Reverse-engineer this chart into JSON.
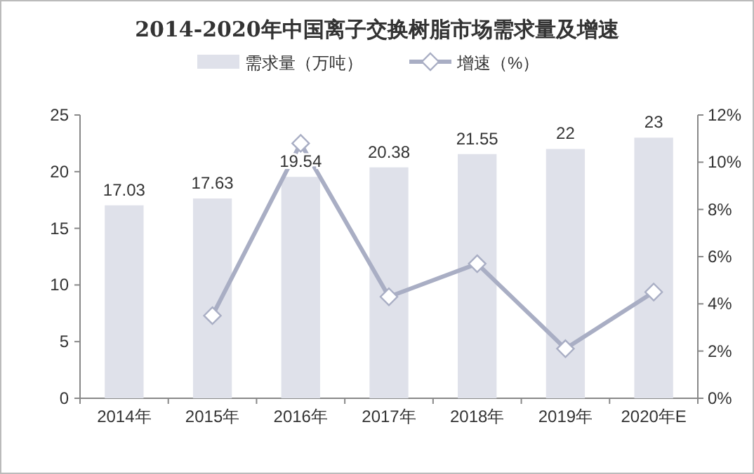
{
  "chart_data": {
    "type": "bar",
    "title": "2014-2020年中国离子交换树脂市场需求量及增速",
    "categories": [
      "2014年",
      "2015年",
      "2016年",
      "2017年",
      "2018年",
      "2019年",
      "2020年E"
    ],
    "series": [
      {
        "name": "需求量（万吨）",
        "color": "#dfe1ea",
        "values": [
          17.03,
          17.63,
          19.54,
          20.38,
          21.55,
          22,
          23
        ],
        "value_labels": [
          "17.03",
          "17.63",
          "19.54",
          "20.38",
          "21.55",
          "22",
          "23"
        ]
      },
      {
        "name": "增速（%）",
        "type": "line",
        "axis": "y2",
        "color": "#a9aec4",
        "marker": "diamond",
        "values": [
          null,
          3.5,
          10.8,
          4.3,
          5.7,
          2.1,
          4.5
        ]
      }
    ],
    "ylim": [
      0,
      25
    ],
    "yticks": [
      0,
      5,
      10,
      15,
      20,
      25
    ],
    "y2lim": [
      0,
      12
    ],
    "y2ticks": [
      {
        "value": 0,
        "label": "0%"
      },
      {
        "value": 2,
        "label": "2%"
      },
      {
        "value": 4,
        "label": "4%"
      },
      {
        "value": 6,
        "label": "6%"
      },
      {
        "value": 8,
        "label": "8%"
      },
      {
        "value": 10,
        "label": "10%"
      },
      {
        "value": 12,
        "label": "12%"
      }
    ],
    "legend": "top",
    "grid": false
  }
}
